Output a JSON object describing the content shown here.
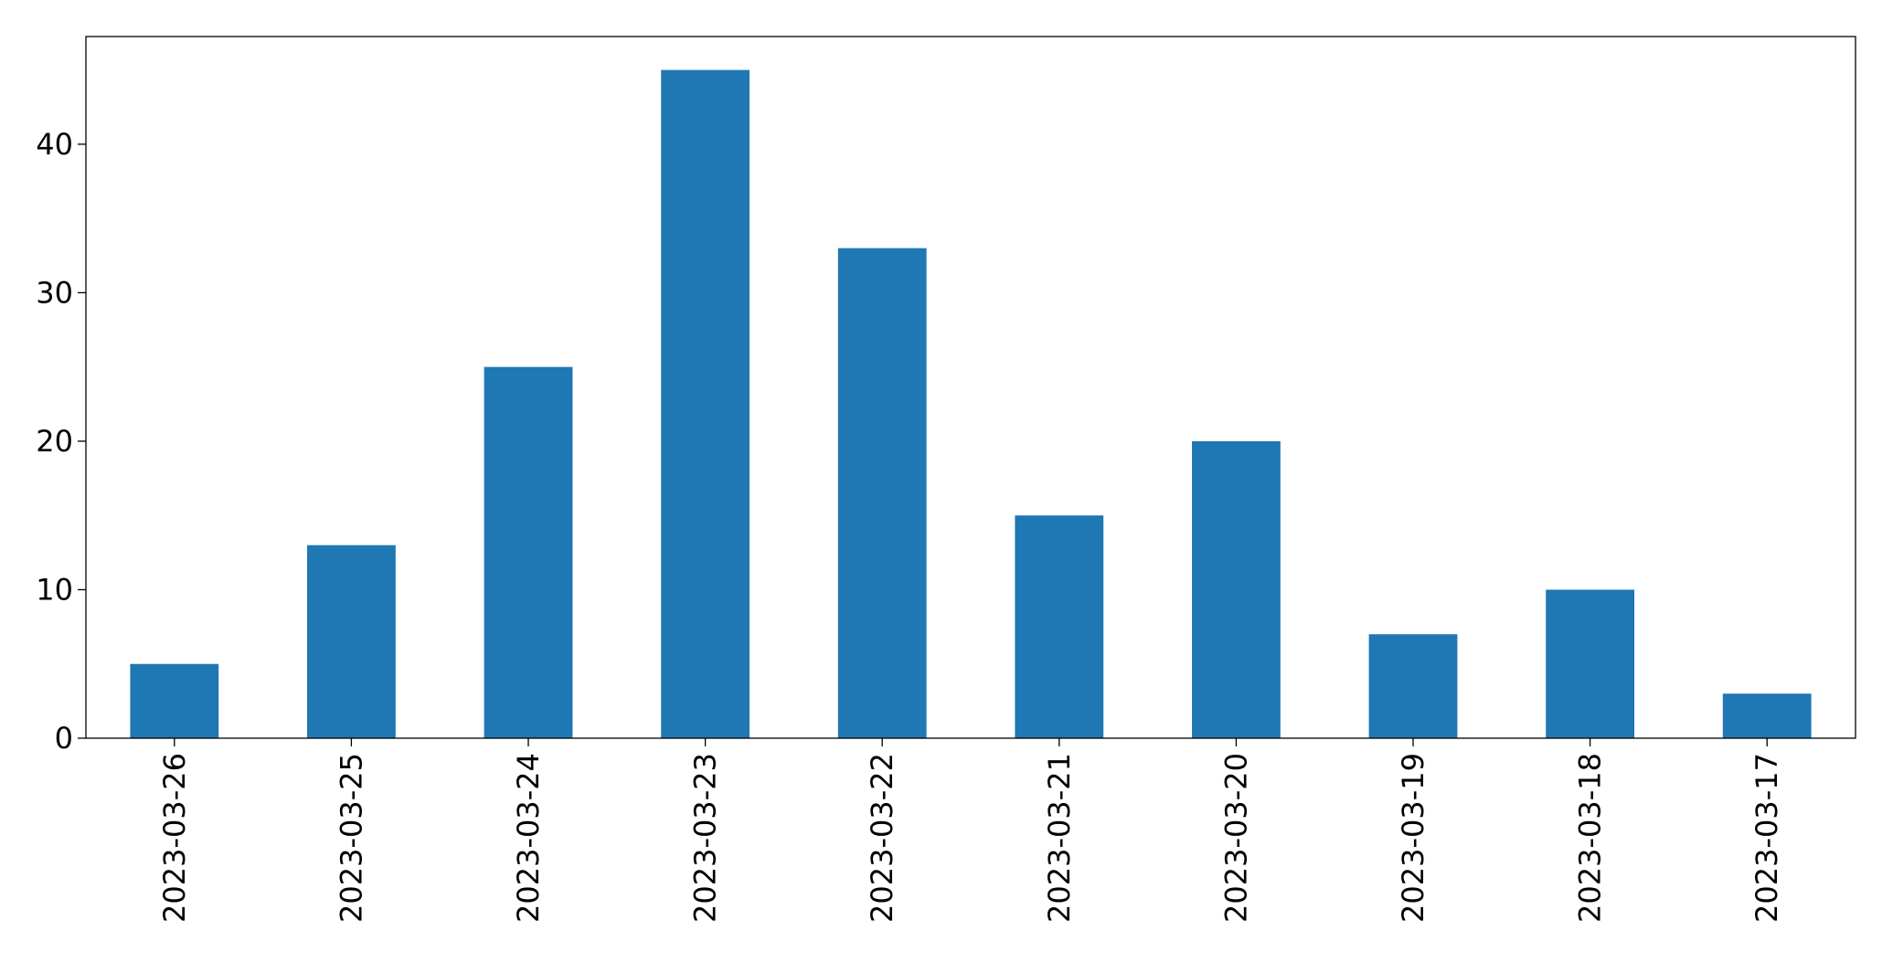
{
  "chart_data": {
    "type": "bar",
    "categories": [
      "2023-03-26",
      "2023-03-25",
      "2023-03-24",
      "2023-03-23",
      "2023-03-22",
      "2023-03-21",
      "2023-03-20",
      "2023-03-19",
      "2023-03-18",
      "2023-03-17"
    ],
    "values": [
      5,
      13,
      25,
      45,
      33,
      15,
      20,
      7,
      10,
      3
    ],
    "color": "#1f77b4",
    "ylim": [
      0,
      47.25
    ],
    "yticks": [
      0,
      10,
      20,
      30,
      40
    ],
    "grid": false
  }
}
